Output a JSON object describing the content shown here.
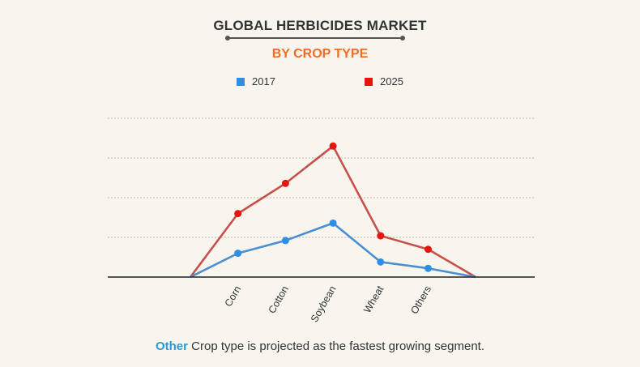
{
  "title": "GLOBAL HERBICIDES MARKET",
  "subtitle": "BY CROP TYPE",
  "footer": {
    "highlight": "Other",
    "text": " Crop type is projected as the fastest growing segment."
  },
  "colors": {
    "accent": "#f26c22",
    "series_2017_marker": "#2f8fe6",
    "series_2017_line": "#4a8fd0",
    "series_2025_marker": "#e8140e",
    "series_2025_line": "#c8504a",
    "footer_highlight": "#2a9bd6"
  },
  "chart_data": {
    "type": "line",
    "title": "GLOBAL HERBICIDES MARKET",
    "subtitle": "BY CROP TYPE",
    "xlabel": "",
    "ylabel": "",
    "categories": [
      "",
      "Corn",
      "Cotton",
      "Soybean",
      "Wheat",
      "Others",
      ""
    ],
    "ylim": [
      0,
      4
    ],
    "grid": true,
    "legend": "top-center",
    "series": [
      {
        "name": "2017",
        "values": [
          0,
          0.6,
          0.92,
          1.36,
          0.38,
          0.22,
          0
        ],
        "markers": [
          false,
          true,
          true,
          true,
          true,
          true,
          false
        ]
      },
      {
        "name": "2025",
        "values": [
          0,
          1.6,
          2.36,
          3.3,
          1.04,
          0.7,
          0
        ],
        "markers": [
          false,
          true,
          true,
          true,
          true,
          true,
          false
        ]
      }
    ]
  }
}
